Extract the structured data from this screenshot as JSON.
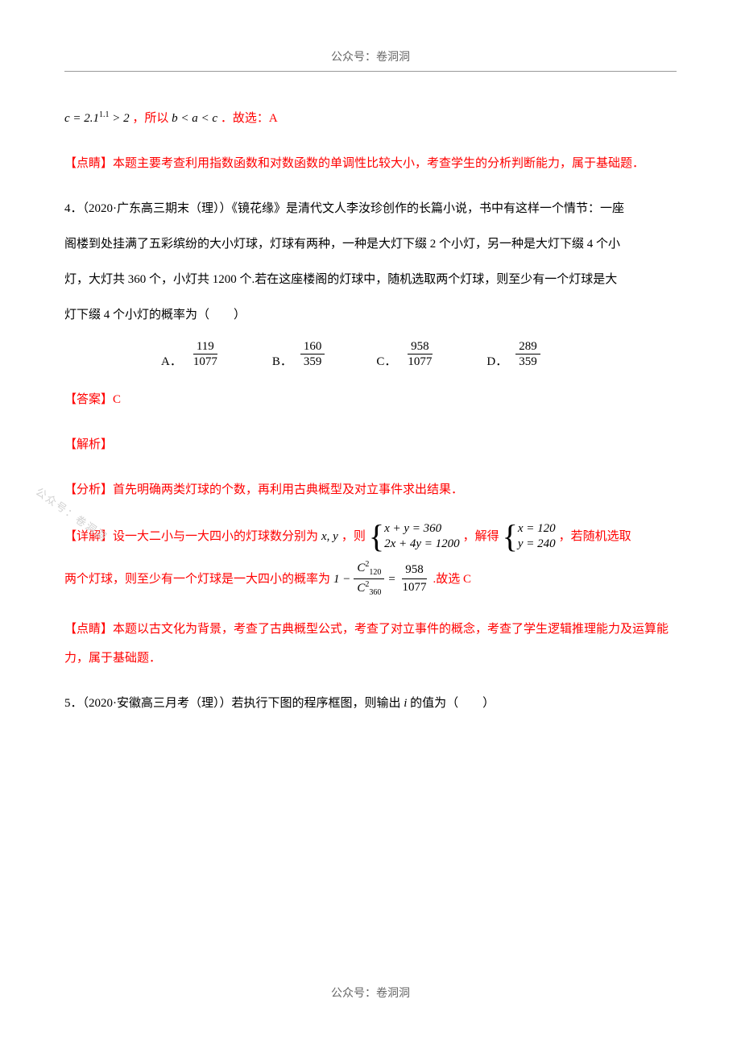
{
  "header": "公众号：卷洞洞",
  "footer": "公众号：卷洞洞",
  "watermark": "公众号：卷洞洞",
  "text_color": "#000000",
  "red_color": "#ff0000",
  "gray_color": "#666666",
  "background": "#ffffff",
  "line1": {
    "math_prefix": "c = 2.1",
    "math_sup": "1.1",
    "math_rest": " > 2",
    "red1": "，所以",
    "math2_a": "b < a < c",
    "red2": "．故选：A"
  },
  "dianjing1": "【点睛】本题主要考查利用指数函数和对数函数的单调性比较大小，考查学生的分析判断能力，属于基础题．",
  "q4": {
    "stem1": "4．（2020·广东高三期末（理））《镜花缘》是清代文人李汝珍创作的长篇小说，书中有这样一个情节：一座",
    "stem2": "阁楼到处挂满了五彩缤纷的大小灯球，灯球有两种，一种是大灯下缀 2 个小灯，另一种是大灯下缀 4 个小",
    "stem3": "灯，大灯共 360 个，小灯共 1200 个.若在这座楼阁的灯球中，随机选取两个灯球，则至少有一个灯球是大",
    "stem4": "灯下缀 4 个小灯的概率为（　　）"
  },
  "options": [
    {
      "label": "A．",
      "num": "119",
      "den": "1077"
    },
    {
      "label": "B．",
      "num": "160",
      "den": "359"
    },
    {
      "label": "C．",
      "num": "958",
      "den": "1077"
    },
    {
      "label": "D．",
      "num": "289",
      "den": "359"
    }
  ],
  "answer": "【答案】C",
  "jiexi": "【解析】",
  "fenxi": "【分析】首先明确两类灯球的个数，再利用古典概型及对立事件求出结果．",
  "xiangjie": {
    "pre": "【详解】设一大二小与一大四小的灯球数分别为",
    "vars": "x, y",
    "mid1": "，则",
    "eq1a": "x + y = 360",
    "eq1b": "2x + 4y = 1200",
    "mid2": "，解得",
    "eq2a": "x = 120",
    "eq2b": "y = 240",
    "mid3": "，若随机选取"
  },
  "prob_line": {
    "pre": "两个灯球，则至少有一个灯球是一大四小的概率为",
    "one_minus": "1 −",
    "c_num_base": "C",
    "c_num_sub": "120",
    "c_num_sup": "2",
    "c_den_base": "C",
    "c_den_sub": "360",
    "c_den_sup": "2",
    "equals": " = ",
    "result_num": "958",
    "result_den": "1077",
    "post": ".故选 C"
  },
  "dianjing2": "【点睛】本题以古文化为背景，考查了古典概型公式，考查了对立事件的概念，考查了学生逻辑推理能力及运算能力，属于基础题．",
  "q5": {
    "stem": "5．（2020·安徽高三月考（理））若执行下图的程序框图，则输出",
    "var": "i",
    "post": "的值为（　　）"
  }
}
